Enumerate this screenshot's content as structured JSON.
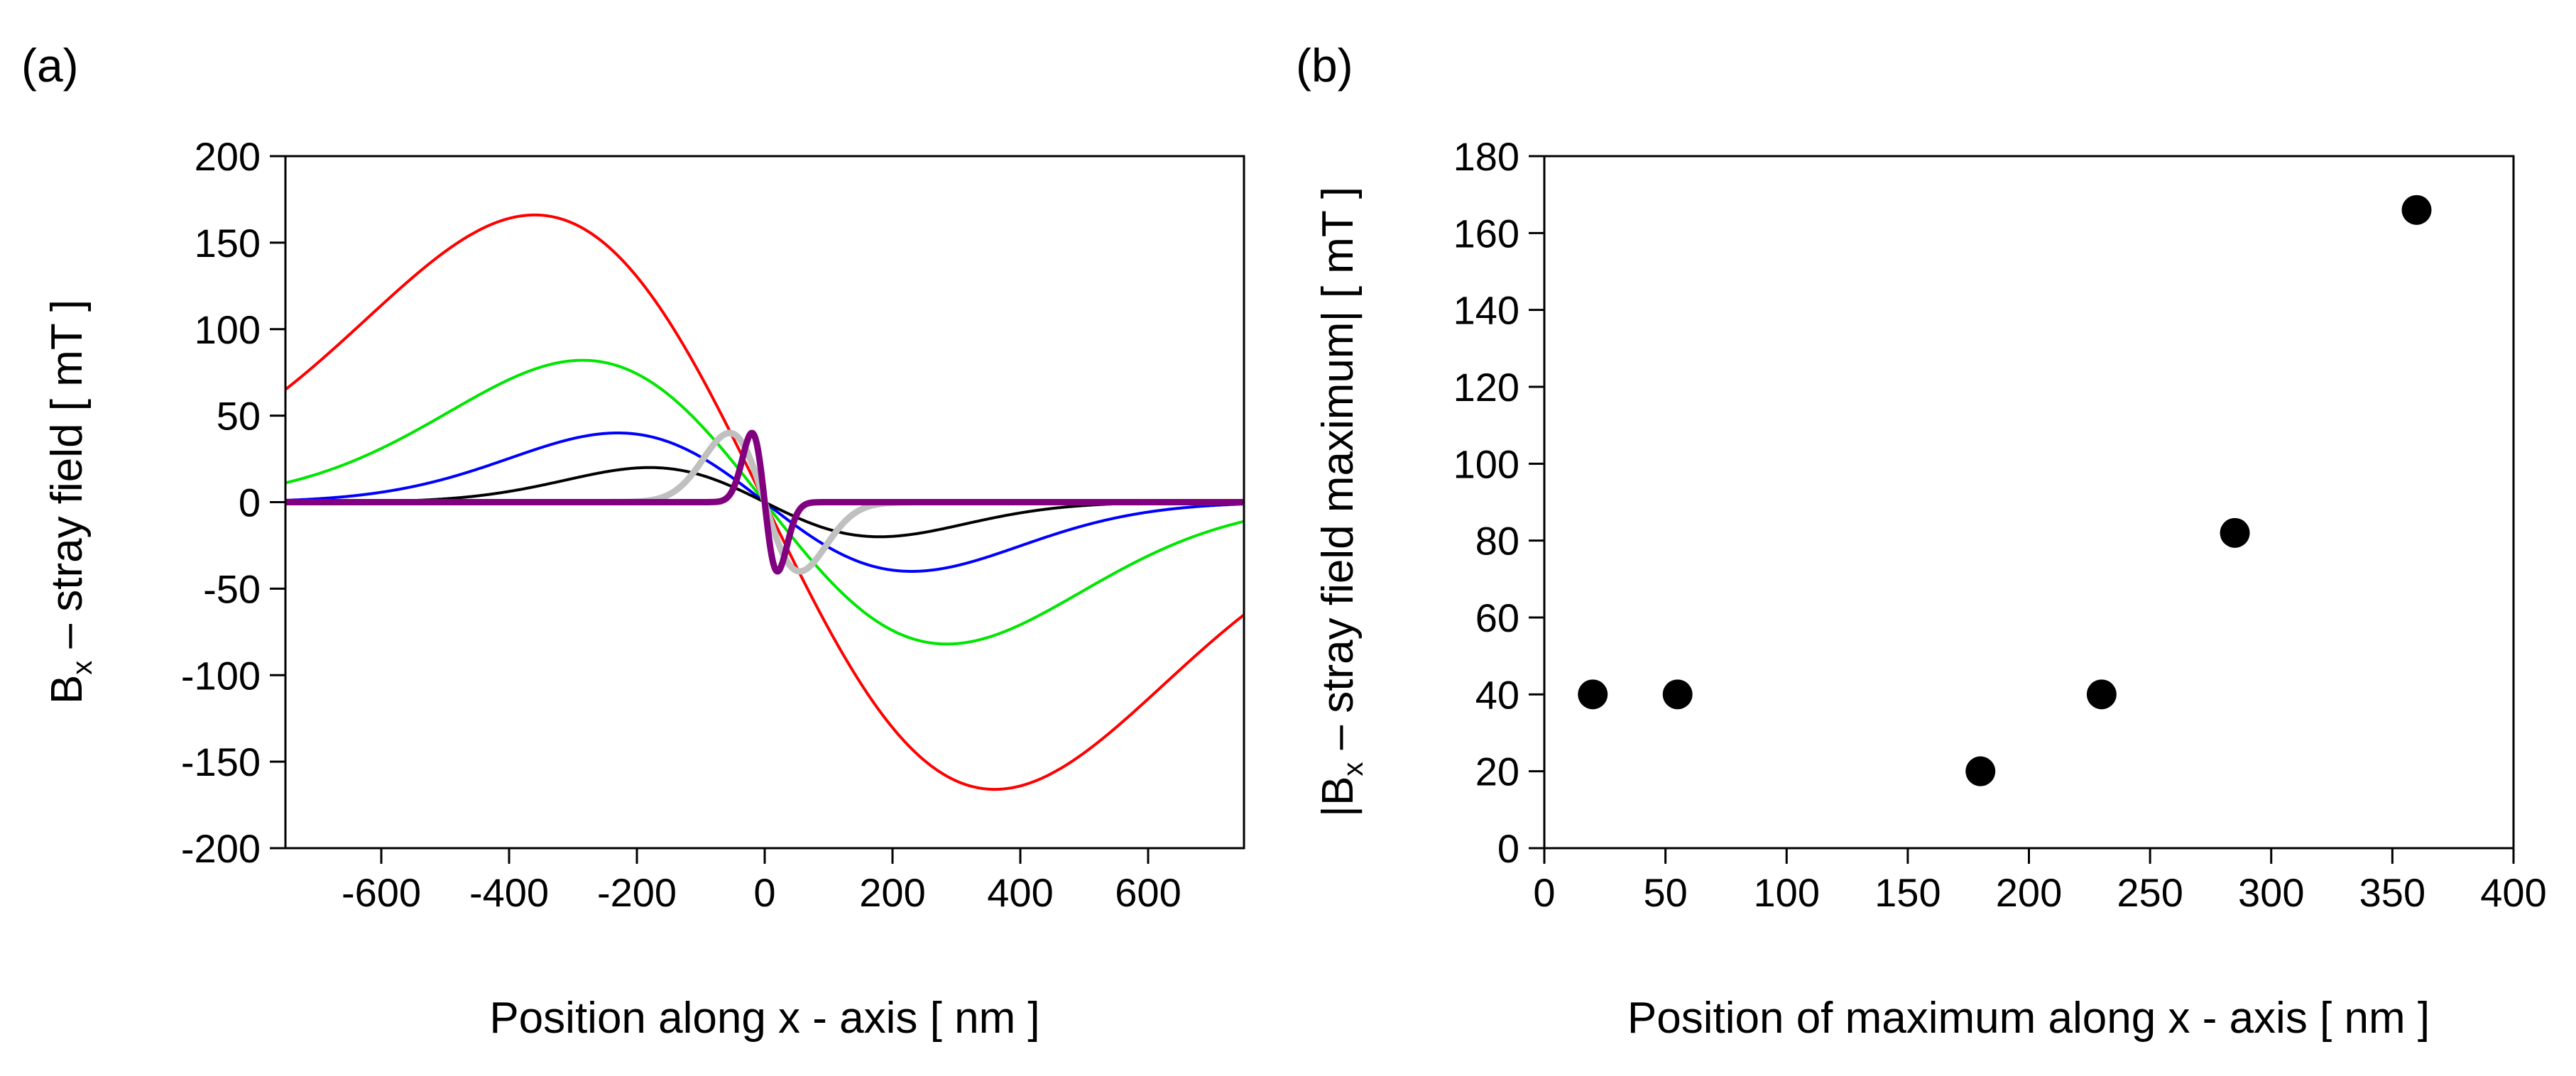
{
  "chart_data": [
    {
      "panel_label": "(a)",
      "type": "line",
      "xlabel": "Position along x - axis [ nm ]",
      "ylabel": {
        "main": "B",
        "sub": "x",
        "rest": " – stray field [ mT ]"
      },
      "xlim": [
        -750,
        750
      ],
      "ylim": [
        -200,
        200
      ],
      "xticks": [
        -600,
        -400,
        -200,
        0,
        200,
        400,
        600
      ],
      "yticks": [
        200,
        150,
        100,
        50,
        0,
        -50,
        -100,
        -150,
        -200
      ],
      "series": [
        {
          "name": "red",
          "color": "#ff0000",
          "peak_position": 360,
          "peak_value": 166,
          "width": "thin"
        },
        {
          "name": "green",
          "color": "#00e600",
          "peak_position": 285,
          "peak_value": 82,
          "width": "thin"
        },
        {
          "name": "blue",
          "color": "#0000ff",
          "peak_position": 230,
          "peak_value": 40,
          "width": "thin"
        },
        {
          "name": "black",
          "color": "#000000",
          "peak_position": 180,
          "peak_value": 20,
          "width": "thin"
        },
        {
          "name": "gray",
          "color": "#c0c0c0",
          "peak_position": 55,
          "peak_value": 40,
          "width": "thick"
        },
        {
          "name": "purple",
          "color": "#800080",
          "peak_position": 20,
          "peak_value": 40,
          "width": "thick"
        }
      ]
    },
    {
      "panel_label": "(b)",
      "type": "scatter",
      "xlabel": "Position of maximum along x - axis [ nm ]",
      "ylabel": {
        "main": "|B",
        "sub": "x",
        "rest": " – stray field maximum| [ mT ]"
      },
      "xlim": [
        0,
        400
      ],
      "ylim": [
        0,
        180
      ],
      "xticks": [
        0,
        50,
        100,
        150,
        200,
        250,
        300,
        350,
        400
      ],
      "yticks": [
        180,
        160,
        140,
        120,
        100,
        80,
        60,
        40,
        20,
        0
      ],
      "points": [
        {
          "x": 20,
          "y": 40
        },
        {
          "x": 55,
          "y": 40
        },
        {
          "x": 180,
          "y": 20
        },
        {
          "x": 230,
          "y": 40
        },
        {
          "x": 285,
          "y": 82
        },
        {
          "x": 360,
          "y": 166
        }
      ]
    }
  ]
}
